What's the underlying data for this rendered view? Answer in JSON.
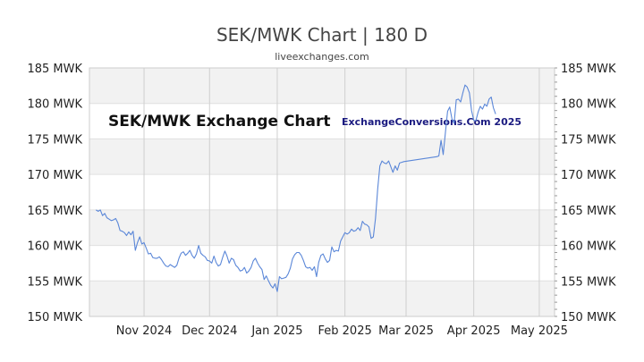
{
  "page": {
    "title": "SEK/MWK Chart | 180 D",
    "subtitle": "liveexchanges.com",
    "watermark_left": "SEK/MWK Exchange Chart",
    "watermark_right": "ExchangeConversions.Com 2025"
  },
  "chart_data": {
    "type": "line",
    "title": "SEK/MWK Chart | 180 D",
    "subtitle": "liveexchanges.com",
    "xlabel": "",
    "ylabel": "",
    "ylim": [
      150,
      185
    ],
    "y_ticks": [
      150,
      155,
      160,
      165,
      170,
      175,
      180,
      185
    ],
    "y_tick_labels": [
      "150 MWK",
      "155 MWK",
      "160 MWK",
      "165 MWK",
      "170 MWK",
      "175 MWK",
      "180 MWK",
      "185 MWK"
    ],
    "x_ticks": [
      {
        "label": "Nov 2024",
        "day": 25
      },
      {
        "label": "Dec 2024",
        "day": 55
      },
      {
        "label": "Jan 2025",
        "day": 86
      },
      {
        "label": "Feb 2025",
        "day": 117
      },
      {
        "label": "Mar 2025",
        "day": 145
      },
      {
        "label": "Apr 2025",
        "day": 176
      },
      {
        "label": "May 2025",
        "day": 206
      }
    ],
    "xlim": [
      0,
      213
    ],
    "grid": true,
    "alternating_bands": true,
    "line_color": "#5b87d8",
    "band_color": "#f2f2f2",
    "series": [
      {
        "points": [
          [
            3,
            165.0
          ],
          [
            4,
            164.8
          ],
          [
            5,
            165.0
          ],
          [
            6,
            164.2
          ],
          [
            7,
            164.5
          ],
          [
            8,
            163.9
          ],
          [
            9,
            163.7
          ],
          [
            10,
            163.5
          ],
          [
            11,
            163.6
          ],
          [
            12,
            163.8
          ],
          [
            13,
            163.2
          ],
          [
            14,
            162.1
          ],
          [
            15,
            162.0
          ],
          [
            16,
            161.8
          ],
          [
            17,
            161.4
          ],
          [
            18,
            161.9
          ],
          [
            19,
            161.5
          ],
          [
            20,
            162.0
          ],
          [
            21,
            159.3
          ],
          [
            22,
            160.4
          ],
          [
            23,
            161.2
          ],
          [
            24,
            160.2
          ],
          [
            25,
            160.4
          ],
          [
            26,
            159.6
          ],
          [
            27,
            158.8
          ],
          [
            28,
            158.9
          ],
          [
            29,
            158.3
          ],
          [
            30,
            158.2
          ],
          [
            31,
            158.2
          ],
          [
            32,
            158.4
          ],
          [
            33,
            158.0
          ],
          [
            34,
            157.5
          ],
          [
            35,
            157.1
          ],
          [
            36,
            157.0
          ],
          [
            37,
            157.3
          ],
          [
            38,
            157.1
          ],
          [
            39,
            156.9
          ],
          [
            40,
            157.2
          ],
          [
            41,
            158.2
          ],
          [
            42,
            158.9
          ],
          [
            43,
            159.1
          ],
          [
            44,
            158.6
          ],
          [
            45,
            158.9
          ],
          [
            46,
            159.3
          ],
          [
            47,
            158.6
          ],
          [
            48,
            158.2
          ],
          [
            49,
            158.8
          ],
          [
            50,
            160.0
          ],
          [
            51,
            158.9
          ],
          [
            52,
            158.6
          ],
          [
            53,
            158.4
          ],
          [
            54,
            157.9
          ],
          [
            55,
            157.8
          ],
          [
            56,
            157.5
          ],
          [
            57,
            158.5
          ],
          [
            58,
            157.6
          ],
          [
            59,
            157.1
          ],
          [
            60,
            157.3
          ],
          [
            61,
            158.3
          ],
          [
            62,
            159.2
          ],
          [
            63,
            158.5
          ],
          [
            64,
            157.5
          ],
          [
            65,
            158.2
          ],
          [
            66,
            158.0
          ],
          [
            67,
            157.2
          ],
          [
            68,
            156.9
          ],
          [
            69,
            156.4
          ],
          [
            70,
            156.5
          ],
          [
            71,
            156.9
          ],
          [
            72,
            156.1
          ],
          [
            73,
            156.4
          ],
          [
            74,
            156.9
          ],
          [
            75,
            157.8
          ],
          [
            76,
            158.2
          ],
          [
            77,
            157.5
          ],
          [
            78,
            157.0
          ],
          [
            79,
            156.6
          ],
          [
            80,
            155.2
          ],
          [
            81,
            155.7
          ],
          [
            82,
            155.0
          ],
          [
            83,
            154.4
          ],
          [
            84,
            154.0
          ],
          [
            85,
            154.6
          ],
          [
            86,
            153.5
          ],
          [
            87,
            155.6
          ],
          [
            88,
            155.3
          ],
          [
            89,
            155.4
          ],
          [
            90,
            155.5
          ],
          [
            91,
            156.0
          ],
          [
            92,
            156.8
          ],
          [
            93,
            158.1
          ],
          [
            94,
            158.7
          ],
          [
            95,
            159.0
          ],
          [
            96,
            159.0
          ],
          [
            97,
            158.6
          ],
          [
            98,
            157.9
          ],
          [
            99,
            157.0
          ],
          [
            100,
            156.8
          ],
          [
            101,
            156.9
          ],
          [
            102,
            156.5
          ],
          [
            103,
            157.0
          ],
          [
            104,
            155.6
          ],
          [
            105,
            157.6
          ],
          [
            106,
            158.6
          ],
          [
            107,
            158.8
          ],
          [
            108,
            158.1
          ],
          [
            109,
            157.6
          ],
          [
            110,
            157.9
          ],
          [
            111,
            159.8
          ],
          [
            112,
            159.1
          ],
          [
            113,
            159.3
          ],
          [
            114,
            159.2
          ],
          [
            115,
            160.6
          ],
          [
            116,
            161.2
          ],
          [
            117,
            161.8
          ],
          [
            118,
            161.6
          ],
          [
            119,
            161.8
          ],
          [
            120,
            162.3
          ],
          [
            121,
            162.0
          ],
          [
            122,
            162.1
          ],
          [
            123,
            162.5
          ],
          [
            124,
            162.1
          ],
          [
            125,
            163.4
          ],
          [
            126,
            163.0
          ],
          [
            127,
            162.9
          ],
          [
            128,
            162.6
          ],
          [
            129,
            161.0
          ],
          [
            130,
            161.2
          ],
          [
            131,
            163.8
          ],
          [
            132,
            168.0
          ],
          [
            133,
            171.2
          ],
          [
            134,
            171.9
          ],
          [
            135,
            171.6
          ],
          [
            136,
            171.5
          ],
          [
            137,
            171.9
          ],
          [
            138,
            171.1
          ],
          [
            139,
            170.3
          ],
          [
            140,
            171.2
          ],
          [
            141,
            170.6
          ],
          [
            142,
            171.6
          ],
          [
            143,
            171.7
          ],
          [
            144,
            171.8
          ],
          [
            159,
            172.5
          ],
          [
            160,
            172.6
          ],
          [
            161,
            174.8
          ],
          [
            162,
            172.8
          ],
          [
            163,
            175.8
          ],
          [
            164,
            178.9
          ],
          [
            165,
            179.5
          ],
          [
            166,
            177.8
          ],
          [
            167,
            177.2
          ],
          [
            168,
            180.5
          ],
          [
            169,
            180.6
          ],
          [
            170,
            180.2
          ],
          [
            171,
            181.5
          ],
          [
            172,
            182.6
          ],
          [
            173,
            182.3
          ],
          [
            174,
            181.5
          ],
          [
            175,
            179.0
          ],
          [
            176,
            177.6
          ],
          [
            177,
            177.6
          ],
          [
            178,
            178.8
          ],
          [
            179,
            179.6
          ],
          [
            180,
            179.2
          ],
          [
            181,
            179.9
          ],
          [
            182,
            179.6
          ],
          [
            183,
            180.6
          ],
          [
            184,
            180.9
          ],
          [
            185,
            179.4
          ],
          [
            186,
            178.5
          ]
        ]
      }
    ]
  }
}
